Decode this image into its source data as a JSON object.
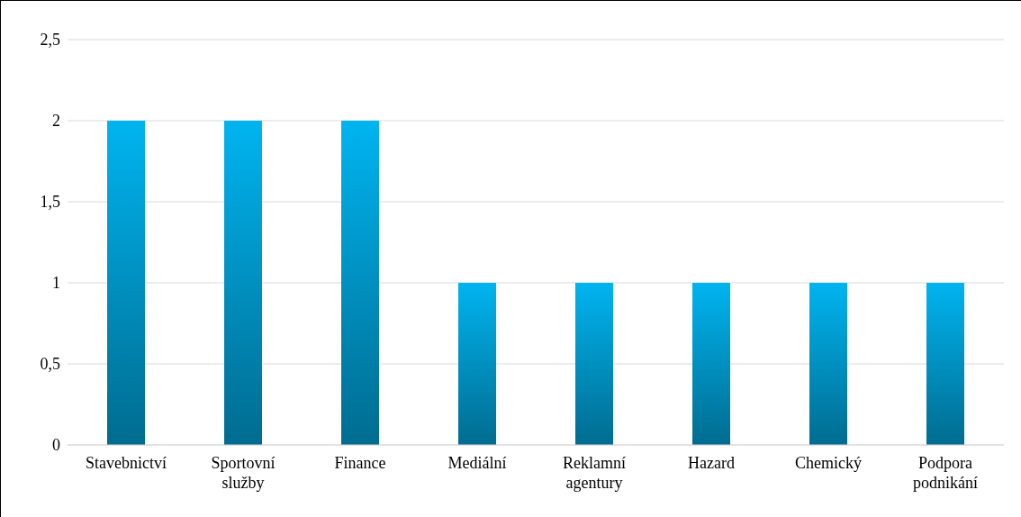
{
  "chart_data": {
    "type": "bar",
    "categories": [
      "Stavebnictví",
      "Sportovní služby",
      "Finance",
      "Mediální",
      "Reklamní agentury",
      "Hazard",
      "Chemický",
      "Podpora podnikání"
    ],
    "values": [
      2,
      2,
      2,
      1,
      1,
      1,
      1,
      1
    ],
    "color": "#00b4f0",
    "ylim": [
      0,
      2.5
    ],
    "yticks": [
      0,
      {
        "value": 0.5,
        "label": "0,5"
      },
      1,
      {
        "value": 1.5,
        "label": "1,5"
      },
      2,
      {
        "value": 2.5,
        "label": "2,5"
      }
    ],
    "grid": "y",
    "legend": false
  }
}
